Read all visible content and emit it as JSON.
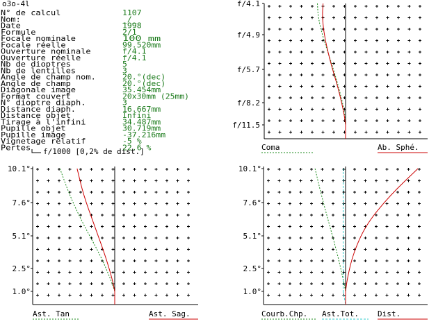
{
  "window_title": "o3o-4l",
  "info_rows": [
    {
      "label": "N° de calcul",
      "value": "1107"
    },
    {
      "label": "Nom:",
      "value": "_/_"
    },
    {
      "label": "Date",
      "value": "1998"
    },
    {
      "label": "Formule",
      "value": "2/1"
    },
    {
      "label": "Focale nominale",
      "value": "100   mm"
    },
    {
      "label": "Focale réelle",
      "value": "99.520mm"
    },
    {
      "label": "Ouverture nominale",
      "value": "f/4.1"
    },
    {
      "label": "Ouverture réelle",
      "value": "f/4.1"
    },
    {
      "label": "Nb de dioptres",
      "value": "5"
    },
    {
      "label": "Nb de lentilles",
      "value": "3"
    },
    {
      "label": "Angle de champ nom.",
      "value": "20.°(dec)"
    },
    {
      "label": "Angle de champ",
      "value": "20.°(dec)"
    },
    {
      "label": "Diagonale image",
      "value": "35.454mm"
    },
    {
      "label": "Format couvert",
      "value": "20x30mm (25mm)"
    },
    {
      "label": "N° dioptre diaph.",
      "value": "3"
    },
    {
      "label": "Distance diaph.",
      "value": "16.667mm"
    },
    {
      "label": "Distance objet",
      "value": "Infini"
    },
    {
      "label": "Tirage à l'infini",
      "value": "34.487mm"
    },
    {
      "label": "Pupille objet",
      "value": "30.719mm"
    },
    {
      "label": "Pupille image",
      "value": "-37.216mm"
    },
    {
      "label": "Vignetage relatif",
      "value": "-5 %"
    },
    {
      "label": "Pertes",
      "value": "22.6 %"
    }
  ],
  "scale_note": "f/1000 [0,2% de dist.]",
  "colors": {
    "text": "#000000",
    "value": "#1a7a1a",
    "red": "#cc0000",
    "green": "#1a8a1a",
    "cyan": "#33cccc",
    "grid": "#000000"
  },
  "chart_data": [
    {
      "type": "line",
      "id": "coma-spherical",
      "y_tick_labels": [
        "f/4.1",
        "f/4.9",
        "f/5.7",
        "f/8.2",
        "f/11.5"
      ],
      "x_range": [
        -1,
        1
      ],
      "y_range": [
        0,
        1
      ],
      "series": [
        {
          "name": "Coma",
          "style": "dotted",
          "color": "#1a8a1a",
          "points": [
            [
              -0.35,
              1.0
            ],
            [
              -0.34,
              0.88
            ],
            [
              -0.28,
              0.72
            ],
            [
              -0.18,
              0.52
            ],
            [
              -0.08,
              0.3
            ],
            [
              -0.01,
              0.1
            ],
            [
              0,
              0
            ]
          ]
        },
        {
          "name": "Ab. Sphé.",
          "style": "solid",
          "color": "#cc0000",
          "points": [
            [
              -0.28,
              1.0
            ],
            [
              -0.29,
              0.88
            ],
            [
              -0.26,
              0.72
            ],
            [
              -0.19,
              0.52
            ],
            [
              -0.09,
              0.3
            ],
            [
              -0.02,
              0.1
            ],
            [
              0,
              0
            ]
          ]
        }
      ]
    },
    {
      "type": "line",
      "id": "astigmatism",
      "y_tick_labels": [
        "10.1°",
        "7.6°",
        "5.1°",
        "2.5°",
        "1.0°"
      ],
      "x_range": [
        -1,
        1
      ],
      "y_range": [
        0,
        1
      ],
      "series": [
        {
          "name": "Ast. Tan",
          "style": "dotted",
          "color": "#1a8a1a",
          "points": [
            [
              -0.67,
              1.0
            ],
            [
              -0.55,
              0.78
            ],
            [
              -0.38,
              0.54
            ],
            [
              -0.18,
              0.3
            ],
            [
              -0.05,
              0.1
            ],
            [
              0,
              0
            ]
          ]
        },
        {
          "name": "Ast. Sag.",
          "style": "solid",
          "color": "#cc0000",
          "points": [
            [
              -0.46,
              1.0
            ],
            [
              -0.38,
              0.78
            ],
            [
              -0.25,
              0.54
            ],
            [
              -0.12,
              0.3
            ],
            [
              -0.03,
              0.1
            ],
            [
              0,
              0
            ]
          ]
        }
      ]
    },
    {
      "type": "line",
      "id": "field-distortion",
      "y_tick_labels": [
        "10.1°",
        "7.6°",
        "5.1°",
        "2.5°",
        "1.0°"
      ],
      "x_range": [
        -1,
        1
      ],
      "y_range": [
        0,
        1
      ],
      "series": [
        {
          "name": "Courb.Chp.",
          "style": "dotted",
          "color": "#1a8a1a",
          "points": [
            [
              -0.38,
              1.0
            ],
            [
              -0.3,
              0.78
            ],
            [
              -0.2,
              0.54
            ],
            [
              -0.1,
              0.3
            ],
            [
              -0.03,
              0.1
            ],
            [
              0,
              0
            ]
          ]
        },
        {
          "name": "Ast.Tot.",
          "style": "dashed",
          "color": "#33cccc",
          "points": [
            [
              -0.03,
              1.0
            ],
            [
              -0.03,
              0.5
            ],
            [
              -0.03,
              0
            ]
          ]
        },
        {
          "name": "Dist.",
          "style": "solid",
          "color": "#cc0000",
          "points": [
            [
              0.9,
              1.0
            ],
            [
              0.55,
              0.78
            ],
            [
              0.25,
              0.54
            ],
            [
              0.09,
              0.3
            ],
            [
              0.02,
              0.1
            ],
            [
              0,
              0
            ]
          ]
        }
      ]
    }
  ]
}
